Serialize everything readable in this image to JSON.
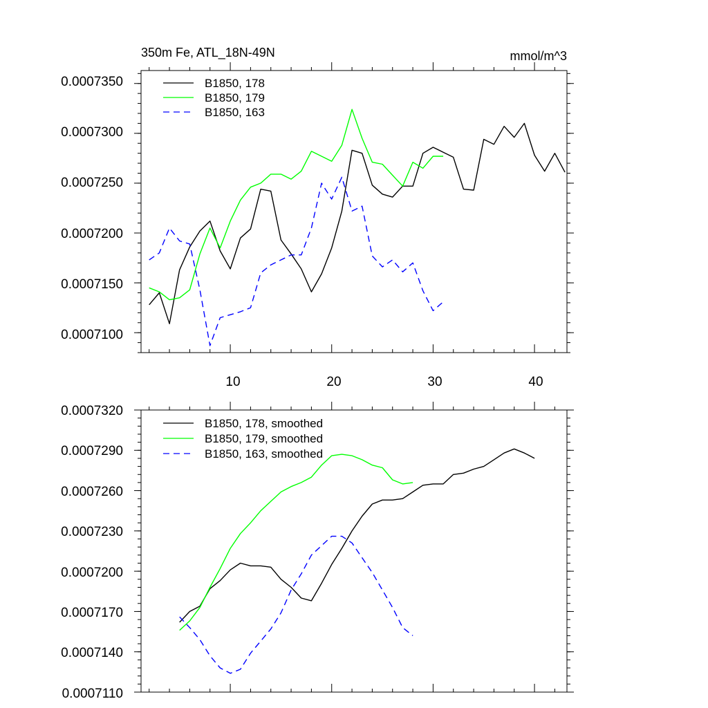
{
  "chart_data": [
    {
      "type": "line",
      "title": "350m Fe, ATL_18N-49N",
      "units": "mmol/m^3",
      "xlabel": "",
      "ylabel": "",
      "xlim": [
        1.2,
        43.2
      ],
      "ylim": [
        0.000708,
        0.0007363
      ],
      "xticks": [
        10,
        20,
        30,
        40
      ],
      "xtick_labels": [
        "10",
        "20",
        "30",
        "40"
      ],
      "yticks": [
        0.00071,
        0.000715,
        0.00072,
        0.000725,
        0.00073,
        0.000735
      ],
      "ytick_labels": [
        "0.0007100",
        "0.0007150",
        "0.0007200",
        "0.0007250",
        "0.0007300",
        "0.0007350"
      ],
      "legend_position": "top-left",
      "series": [
        {
          "name": "B1850, 178",
          "color": "#000000",
          "dash": "solid",
          "x": [
            2,
            3,
            4,
            5,
            6,
            7,
            8,
            9,
            10,
            11,
            12,
            13,
            14,
            15,
            16,
            17,
            18,
            19,
            20,
            21,
            22,
            23,
            24,
            25,
            26,
            27,
            28,
            29,
            30,
            31,
            32,
            33,
            34,
            35,
            36,
            37,
            38,
            39,
            40,
            41,
            42,
            43
          ],
          "values": [
            0.0007128,
            0.000714,
            0.0007109,
            0.0007163,
            0.0007186,
            0.0007202,
            0.0007212,
            0.0007182,
            0.0007164,
            0.0007195,
            0.0007204,
            0.0007244,
            0.0007242,
            0.0007193,
            0.0007179,
            0.0007164,
            0.0007141,
            0.0007159,
            0.0007185,
            0.0007222,
            0.0007283,
            0.000728,
            0.0007248,
            0.0007239,
            0.0007236,
            0.0007247,
            0.0007247,
            0.000728,
            0.0007286,
            0.0007281,
            0.0007276,
            0.0007244,
            0.0007243,
            0.0007294,
            0.0007289,
            0.0007307,
            0.0007296,
            0.000731,
            0.0007278,
            0.0007262,
            0.000728,
            0.0007261
          ]
        },
        {
          "name": "B1850, 179",
          "color": "#00ff00",
          "dash": "solid",
          "x": [
            2,
            3,
            4,
            5,
            6,
            7,
            8,
            9,
            10,
            11,
            12,
            13,
            14,
            15,
            16,
            17,
            18,
            19,
            20,
            21,
            22,
            23,
            24,
            25,
            26,
            27,
            28,
            29,
            30,
            31
          ],
          "values": [
            0.0007145,
            0.0007141,
            0.0007133,
            0.0007135,
            0.0007143,
            0.0007179,
            0.0007205,
            0.0007185,
            0.0007212,
            0.0007233,
            0.0007246,
            0.000725,
            0.0007259,
            0.0007259,
            0.0007254,
            0.0007262,
            0.0007282,
            0.0007277,
            0.0007272,
            0.0007288,
            0.0007324,
            0.0007295,
            0.0007271,
            0.0007269,
            0.0007258,
            0.0007247,
            0.0007271,
            0.0007265,
            0.0007277,
            0.0007277
          ]
        },
        {
          "name": "B1850, 163",
          "color": "#0000ff",
          "dash": "dashed",
          "x": [
            2,
            3,
            4,
            5,
            6,
            7,
            8,
            9,
            10,
            11,
            12,
            13,
            14,
            15,
            16,
            17,
            18,
            19,
            20,
            21,
            22,
            23,
            24,
            25,
            26,
            27,
            28,
            29,
            30,
            31
          ],
          "values": [
            0.0007173,
            0.000718,
            0.0007205,
            0.0007192,
            0.0007189,
            0.0007143,
            0.0007087,
            0.0007115,
            0.0007118,
            0.0007121,
            0.0007125,
            0.000716,
            0.0007168,
            0.0007173,
            0.0007178,
            0.0007178,
            0.0007205,
            0.000725,
            0.0007234,
            0.0007256,
            0.0007222,
            0.0007227,
            0.0007177,
            0.0007166,
            0.0007173,
            0.0007161,
            0.000717,
            0.0007142,
            0.0007122,
            0.0007131
          ]
        }
      ]
    },
    {
      "type": "line",
      "title": "",
      "xlabel": "",
      "ylabel": "",
      "xlim": [
        1.2,
        43.2
      ],
      "ylim": [
        0.000711,
        0.000732
      ],
      "xticks": [
        10,
        20,
        30,
        40
      ],
      "xtick_labels": [],
      "yticks": [
        0.000711,
        0.000714,
        0.000717,
        0.00072,
        0.000723,
        0.000726,
        0.000729,
        0.000732
      ],
      "ytick_labels": [
        "0.0007110",
        "0.0007140",
        "0.0007170",
        "0.0007200",
        "0.0007230",
        "0.0007260",
        "0.0007290",
        "0.0007320"
      ],
      "legend_position": "top-left",
      "series": [
        {
          "name": "B1850, 178, smoothed",
          "color": "#000000",
          "dash": "solid",
          "x": [
            5,
            6,
            7,
            8,
            9,
            10,
            11,
            12,
            13,
            14,
            15,
            16,
            17,
            18,
            19,
            20,
            21,
            22,
            23,
            24,
            25,
            26,
            27,
            28,
            29,
            30,
            31,
            32,
            33,
            34,
            35,
            36,
            37,
            38,
            39,
            40
          ],
          "values": [
            0.0007162,
            0.000717,
            0.0007174,
            0.0007187,
            0.0007193,
            0.0007201,
            0.0007206,
            0.0007204,
            0.0007204,
            0.0007203,
            0.0007194,
            0.0007188,
            0.000718,
            0.0007178,
            0.0007191,
            0.0007205,
            0.0007217,
            0.000723,
            0.0007241,
            0.000725,
            0.0007253,
            0.0007253,
            0.0007254,
            0.0007259,
            0.0007264,
            0.0007265,
            0.0007265,
            0.0007272,
            0.0007273,
            0.0007276,
            0.0007278,
            0.0007283,
            0.0007288,
            0.0007291,
            0.0007288,
            0.0007284
          ]
        },
        {
          "name": "B1850, 179, smoothed",
          "color": "#00ff00",
          "dash": "solid",
          "x": [
            5,
            6,
            7,
            8,
            9,
            10,
            11,
            12,
            13,
            14,
            15,
            16,
            17,
            18,
            19,
            20,
            21,
            22,
            23,
            24,
            25,
            26,
            27,
            28
          ],
          "values": [
            0.0007156,
            0.0007163,
            0.0007173,
            0.0007188,
            0.0007202,
            0.0007217,
            0.0007228,
            0.0007236,
            0.0007245,
            0.0007252,
            0.0007259,
            0.0007263,
            0.0007266,
            0.000727,
            0.0007279,
            0.0007286,
            0.0007287,
            0.0007286,
            0.0007283,
            0.0007279,
            0.0007277,
            0.0007268,
            0.0007265,
            0.0007266
          ]
        },
        {
          "name": "B1850, 163, smoothed",
          "color": "#0000ff",
          "dash": "dashed",
          "x": [
            5,
            6,
            7,
            8,
            9,
            10,
            11,
            12,
            13,
            14,
            15,
            16,
            17,
            18,
            19,
            20,
            21,
            22,
            23,
            24,
            25,
            26,
            27,
            28
          ],
          "values": [
            0.0007166,
            0.0007158,
            0.0007149,
            0.0007137,
            0.0007128,
            0.0007124,
            0.0007127,
            0.0007139,
            0.0007148,
            0.0007157,
            0.0007169,
            0.0007186,
            0.0007198,
            0.0007212,
            0.0007219,
            0.0007226,
            0.0007226,
            0.0007221,
            0.000721,
            0.0007199,
            0.0007186,
            0.0007173,
            0.0007158,
            0.0007152
          ]
        }
      ]
    }
  ]
}
